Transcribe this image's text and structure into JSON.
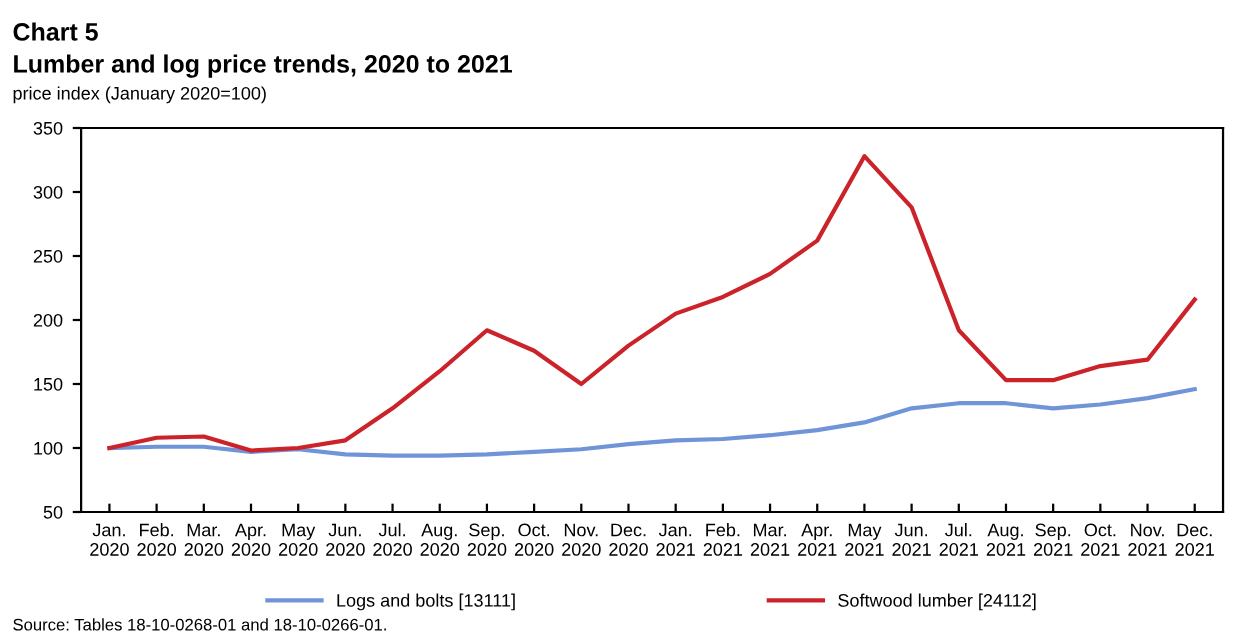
{
  "chart_data": {
    "type": "line",
    "title": "Chart 5",
    "subtitle": "Lumber and log price trends, 2020 to 2021",
    "ylabel": "price index (January 2020=100)",
    "categories": [
      "Jan.\n2020",
      "Feb.\n2020",
      "Mar.\n2020",
      "Apr.\n2020",
      "May\n2020",
      "Jun.\n2020",
      "Jul.\n2020",
      "Aug.\n2020",
      "Sep.\n2020",
      "Oct.\n2020",
      "Nov.\n2020",
      "Dec.\n2020",
      "Jan.\n2021",
      "Feb.\n2021",
      "Mar.\n2021",
      "Apr.\n2021",
      "May\n2021",
      "Jun.\n2021",
      "Jul.\n2021",
      "Aug.\n2021",
      "Sep.\n2021",
      "Oct.\n2021",
      "Nov.\n2021",
      "Dec.\n2021"
    ],
    "series": [
      {
        "name": "Logs and bolts [13111]",
        "color": "#7094d8",
        "values": [
          100,
          101,
          101,
          97,
          99,
          95,
          94,
          94,
          95,
          97,
          99,
          103,
          106,
          107,
          110,
          114,
          120,
          131,
          135,
          135,
          131,
          134,
          139,
          146
        ]
      },
      {
        "name": "Softwood lumber [24112]",
        "color": "#cc2229",
        "values": [
          100,
          108,
          109,
          98,
          100,
          106,
          131,
          160,
          192,
          176,
          150,
          180,
          205,
          218,
          236,
          262,
          328,
          288,
          192,
          153,
          153,
          164,
          169,
          216
        ]
      }
    ],
    "ylim": [
      50,
      350
    ],
    "yticks": [
      50,
      100,
      150,
      200,
      250,
      300,
      350
    ],
    "grid": false,
    "legend": "bottom",
    "marker": "none",
    "line_style": "solid",
    "annotations": [
      "Source: Tables 18-10-0268-01 and 18-10-0266-01."
    ]
  }
}
